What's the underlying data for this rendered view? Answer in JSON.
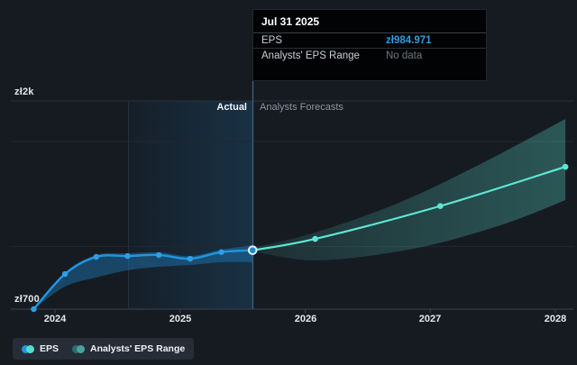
{
  "tooltip": {
    "date": "Jul 31 2025",
    "eps_label": "EPS",
    "eps_value": "zł984.971",
    "range_label": "Analysts' EPS Range",
    "range_value": "No data"
  },
  "annotations": {
    "actual": "Actual",
    "forecasts": "Analysts Forecasts"
  },
  "y_axis": {
    "top_label": "zł2k",
    "bottom_label": "zł700"
  },
  "legend": [
    {
      "label": "EPS"
    },
    {
      "label": "Analysts' EPS Range"
    }
  ],
  "colors": {
    "background": "#161b22",
    "eps_line": "#2196e0",
    "eps_point": "#2d9fe8",
    "selected_point_fill": "#1d85cc",
    "selected_point_ring": "#e3edf5",
    "forecast_line": "#5ce8d5",
    "forecast_band": "#5ee3d2",
    "actual_band": "#2082c6",
    "highlight": "#2196e0",
    "tooltip_value": "#2f9fe0",
    "legend_eps_dots": [
      "#2196e0",
      "#55ddd0"
    ],
    "legend_range_dots": [
      "#2d6b74",
      "#4aa39e"
    ]
  },
  "chart_data": {
    "type": "line",
    "currency": "zł",
    "x_ticks": [
      "2024",
      "2025",
      "2026",
      "2027",
      "2028"
    ],
    "x_tick_years": [
      2024,
      2025,
      2026,
      2027,
      2028
    ],
    "y_tick_labels": [
      "zł2k",
      "zł700"
    ],
    "ylim": [
      700,
      2000
    ],
    "selected_point": {
      "date": "Jul 31 2025",
      "x": 2025.58,
      "value": 984.971,
      "series": "EPS"
    },
    "series": [
      {
        "name": "EPS",
        "region": "actual",
        "x": [
          2023.83,
          2024.08,
          2024.33,
          2024.58,
          2024.83,
          2025.08,
          2025.33,
          2025.58
        ],
        "values": [
          700,
          870,
          953,
          957,
          962,
          944,
          976,
          984.971
        ]
      },
      {
        "name": "EPS forecast",
        "region": "forecast",
        "x": [
          2025.58,
          2026.08,
          2027.08,
          2028.08
        ],
        "values": [
          984.971,
          1040,
          1199,
          1389
        ]
      }
    ],
    "bands": [
      {
        "name": "actual EPS range",
        "upper": {
          "x": [
            2023.83,
            2024.08,
            2024.33,
            2024.58,
            2024.83,
            2025.08,
            2025.33,
            2025.58
          ],
          "values": [
            700,
            879,
            962,
            970,
            975,
            957,
            988,
            1010
          ]
        },
        "lower": {
          "x": [
            2023.83,
            2024.08,
            2024.33,
            2024.58,
            2024.83,
            2025.08,
            2025.33,
            2025.58
          ],
          "values": [
            700,
            809,
            853,
            888,
            905,
            914,
            927,
            927
          ]
        }
      },
      {
        "name": "analysts forecast range",
        "upper": {
          "x": [
            2025.58,
            2026.08,
            2026.75,
            2027.4,
            2028.08
          ],
          "values": [
            997,
            1071,
            1215,
            1402,
            1620
          ]
        },
        "lower": {
          "x": [
            2025.58,
            2025.85,
            2026.08,
            2026.45,
            2027.0,
            2027.6,
            2028.08
          ],
          "values": [
            979,
            949,
            936,
            953,
            1010,
            1114,
            1228
          ]
        }
      }
    ]
  }
}
